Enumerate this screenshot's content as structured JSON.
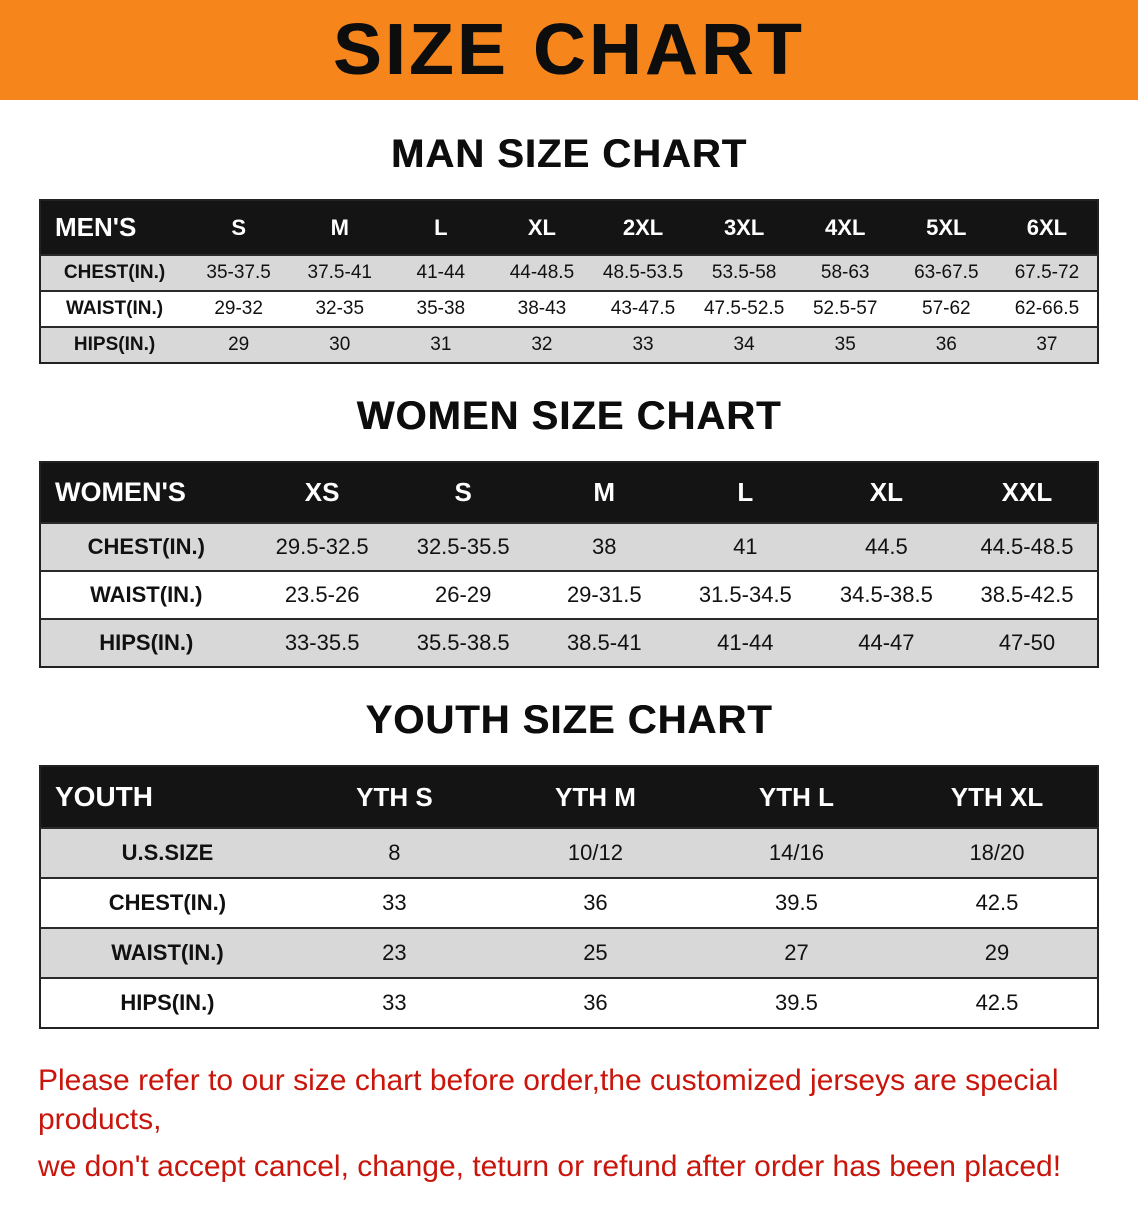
{
  "banner": {
    "title": "SIZE CHART",
    "bg_color": "#F6861C"
  },
  "chart_data": [
    {
      "type": "table",
      "id": "men",
      "title": "MAN SIZE CHART",
      "header": [
        "MEN'S",
        "S",
        "M",
        "L",
        "XL",
        "2XL",
        "3XL",
        "4XL",
        "5XL",
        "6XL"
      ],
      "rows": [
        {
          "label": "CHEST(IN.)",
          "values": [
            "35-37.5",
            "37.5-41",
            "41-44",
            "44-48.5",
            "48.5-53.5",
            "53.5-58",
            "58-63",
            "63-67.5",
            "67.5-72"
          ]
        },
        {
          "label": "WAIST(IN.)",
          "values": [
            "29-32",
            "32-35",
            "35-38",
            "38-43",
            "43-47.5",
            "47.5-52.5",
            "52.5-57",
            "57-62",
            "62-66.5"
          ]
        },
        {
          "label": "HIPS(IN.)",
          "values": [
            "29",
            "30",
            "31",
            "32",
            "33",
            "34",
            "35",
            "36",
            "37"
          ]
        }
      ]
    },
    {
      "type": "table",
      "id": "women",
      "title": "WOMEN SIZE CHART",
      "header": [
        "WOMEN'S",
        "XS",
        "S",
        "M",
        "L",
        "XL",
        "XXL"
      ],
      "rows": [
        {
          "label": "CHEST(IN.)",
          "values": [
            "29.5-32.5",
            "32.5-35.5",
            "38",
            "41",
            "44.5",
            "44.5-48.5"
          ]
        },
        {
          "label": "WAIST(IN.)",
          "values": [
            "23.5-26",
            "26-29",
            "29-31.5",
            "31.5-34.5",
            "34.5-38.5",
            "38.5-42.5"
          ]
        },
        {
          "label": "HIPS(IN.)",
          "values": [
            "33-35.5",
            "35.5-38.5",
            "38.5-41",
            "41-44",
            "44-47",
            "47-50"
          ]
        }
      ]
    },
    {
      "type": "table",
      "id": "youth",
      "title": "YOUTH SIZE CHART",
      "header": [
        "YOUTH",
        "YTH S",
        "YTH M",
        "YTH L",
        "YTH XL"
      ],
      "rows": [
        {
          "label": "U.S.SIZE",
          "values": [
            "8",
            "10/12",
            "14/16",
            "18/20"
          ]
        },
        {
          "label": "CHEST(IN.)",
          "values": [
            "33",
            "36",
            "39.5",
            "42.5"
          ]
        },
        {
          "label": "WAIST(IN.)",
          "values": [
            "23",
            "25",
            "27",
            "29"
          ]
        },
        {
          "label": "HIPS(IN.)",
          "values": [
            "33",
            "36",
            "39.5",
            "42.5"
          ]
        }
      ]
    }
  ],
  "disclaimer": {
    "color": "#C9150B",
    "line1": "Please refer to our size chart before order,the customized jerseys are special products,",
    "line2": "we don't accept cancel, change, teturn or refund after order has been placed!"
  }
}
